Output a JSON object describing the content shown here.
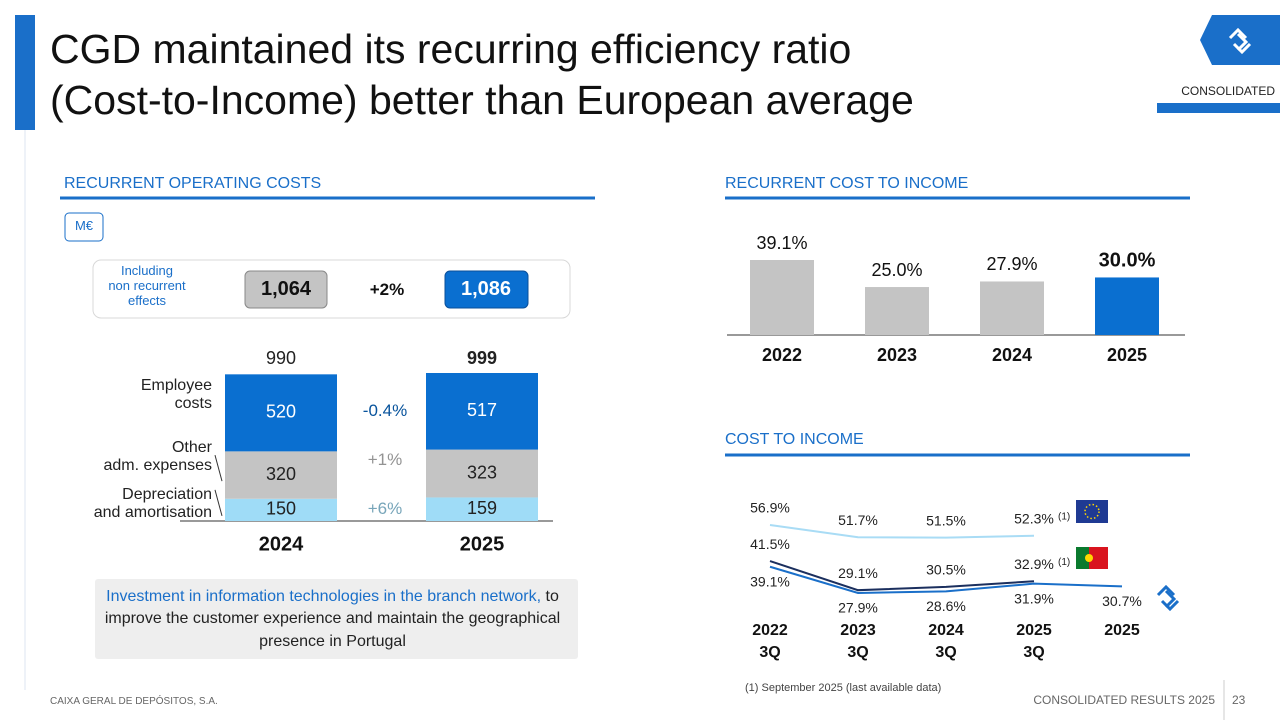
{
  "header": {
    "title": "CGD maintained its recurring efficiency ratio\n(Cost-to-Income) better than European average",
    "tag": "CONSOLIDATED"
  },
  "chart_data": [
    {
      "type": "stacked_bar",
      "title": "RECURRENT OPERATING COSTS",
      "unit": "M€",
      "categories": [
        "2024",
        "2025"
      ],
      "series": [
        {
          "name": "Depreciation\nand amortisation",
          "color": "#9fdcf7",
          "values": [
            150,
            159
          ],
          "change": "+6%"
        },
        {
          "name": "Other\nadm. expenses",
          "color": "#c4c4c4",
          "values": [
            320,
            323
          ],
          "change": "+1%"
        },
        {
          "name": "Employee\ncosts",
          "color": "#0a6fd0",
          "values": [
            520,
            517
          ],
          "change": "-0.4%"
        }
      ],
      "totals": [
        990,
        999
      ],
      "including_non_recurrent": {
        "label": "Including\nnon recurrent\neffects",
        "values": [
          1064,
          1086
        ],
        "value_labels": [
          "1,064",
          "1,086"
        ],
        "change": "+2%"
      }
    },
    {
      "type": "bar",
      "title": "RECURRENT COST TO INCOME",
      "categories": [
        "2022",
        "2023",
        "2024",
        "2025"
      ],
      "values": [
        39.1,
        25.0,
        27.9,
        30.0
      ],
      "value_labels": [
        "39.1%",
        "25.0%",
        "27.9%",
        "30.0%"
      ],
      "colors": [
        "#c4c4c4",
        "#c4c4c4",
        "#c4c4c4",
        "#0a6fd0"
      ]
    },
    {
      "type": "line",
      "title": "COST TO INCOME",
      "categories": [
        "2022\n3Q",
        "2023\n3Q",
        "2024\n3Q",
        "2025\n3Q",
        "2025"
      ],
      "series": [
        {
          "color": "#a9dcf5",
          "values": [
            56.9,
            51.7,
            51.5,
            52.3,
            null
          ],
          "value_labels": [
            "56.9%",
            "51.7%",
            "51.5%",
            "52.3%",
            null
          ],
          "notes": [
            null,
            null,
            null,
            "(1)",
            null
          ]
        },
        {
          "color": "#1b2f5e",
          "values": [
            41.5,
            29.1,
            30.5,
            32.9,
            null
          ],
          "value_labels": [
            "41.5%",
            "29.1%",
            "30.5%",
            "32.9%",
            null
          ],
          "notes": [
            null,
            null,
            null,
            "(1)",
            null
          ]
        },
        {
          "color": "#1a6fc9",
          "values": [
            39.1,
            27.9,
            28.6,
            31.9,
            30.7
          ],
          "value_labels": [
            "39.1%",
            "27.9%",
            "28.6%",
            "31.9%",
            "30.7%"
          ],
          "notes": [
            null,
            null,
            null,
            null,
            null
          ]
        }
      ]
    }
  ],
  "callout": {
    "highlight": "Investment in information technologies in the branch network,",
    "text": "to improve the customer experience and maintain the geographical presence in Portugal"
  },
  "footnote": "(1) September 2025  (last available data)",
  "footer": {
    "company": "CAIXA GERAL DE DEPÓSITOS, S.A.",
    "report": "CONSOLIDATED RESULTS 2025",
    "page": "23"
  }
}
